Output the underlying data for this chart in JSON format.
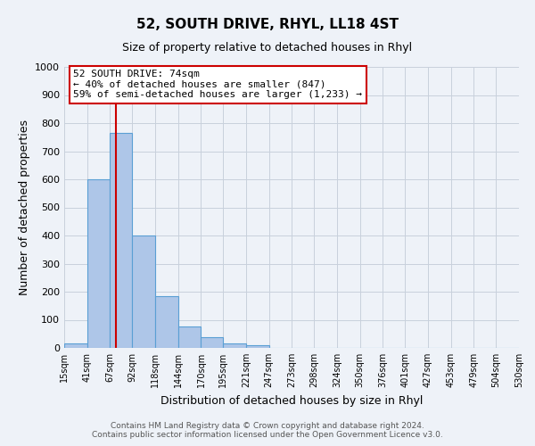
{
  "title": "52, SOUTH DRIVE, RHYL, LL18 4ST",
  "subtitle": "Size of property relative to detached houses in Rhyl",
  "xlabel": "Distribution of detached houses by size in Rhyl",
  "ylabel": "Number of detached properties",
  "bin_edges": [
    15,
    41,
    67,
    92,
    118,
    144,
    170,
    195,
    221,
    247,
    273,
    298,
    324,
    350,
    376,
    401,
    427,
    453,
    479,
    504,
    530
  ],
  "bar_heights": [
    15,
    600,
    765,
    400,
    185,
    75,
    38,
    15,
    10,
    0,
    0,
    0,
    0,
    0,
    0,
    0,
    0,
    0,
    0,
    0
  ],
  "bar_color": "#aec6e8",
  "bar_edge_color": "#5a9fd4",
  "property_line_x": 74,
  "property_line_color": "#cc0000",
  "annotation_line1": "52 SOUTH DRIVE: 74sqm",
  "annotation_line2": "← 40% of detached houses are smaller (847)",
  "annotation_line3": "59% of semi-detached houses are larger (1,233) →",
  "ylim": [
    0,
    1000
  ],
  "yticks": [
    0,
    100,
    200,
    300,
    400,
    500,
    600,
    700,
    800,
    900,
    1000
  ],
  "footer_line1": "Contains HM Land Registry data © Crown copyright and database right 2024.",
  "footer_line2": "Contains public sector information licensed under the Open Government Licence v3.0.",
  "background_color": "#eef2f8",
  "grid_color": "#c8d0dc"
}
